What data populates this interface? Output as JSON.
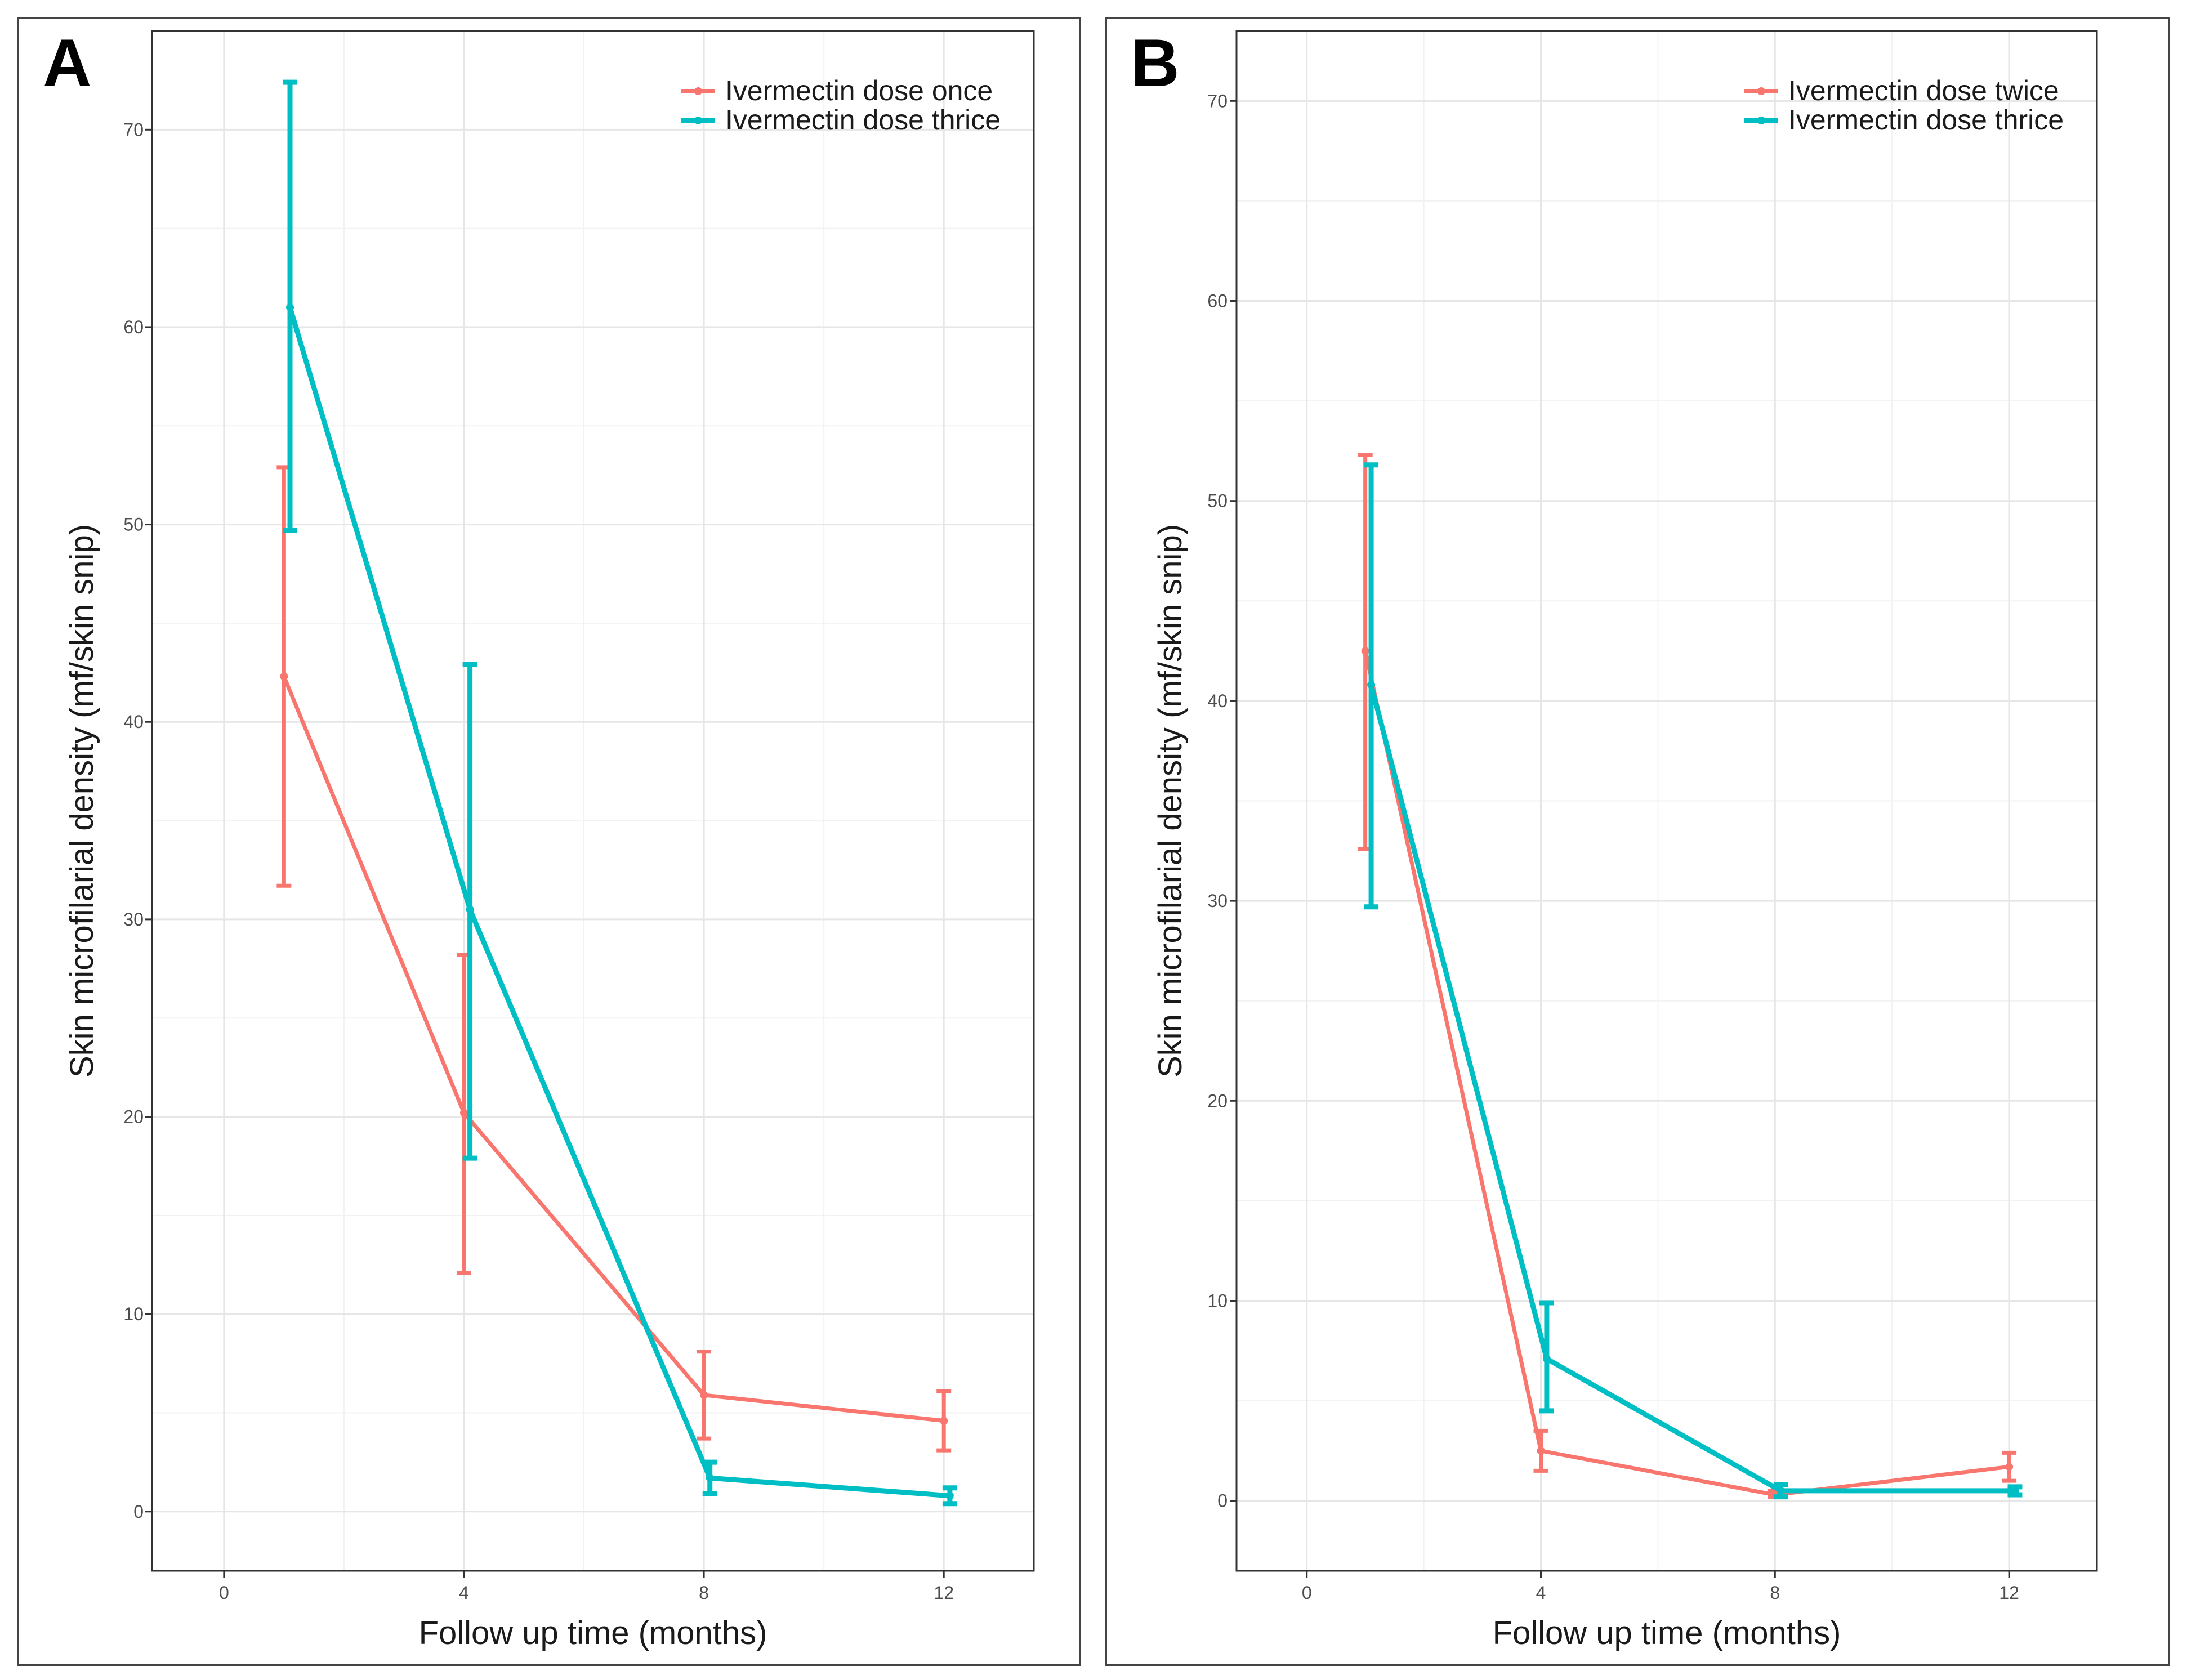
{
  "chart_data": [
    {
      "panel_label": "A",
      "type": "line",
      "xlabel": "Follow up time (months)",
      "ylabel": "Skin microfilarial density (mf/skin snip)",
      "xlim": [
        -1.2,
        13.5
      ],
      "ylim": [
        -3,
        75
      ],
      "xticks": [
        0,
        4,
        8,
        12
      ],
      "yticks": [
        0,
        10,
        20,
        30,
        40,
        50,
        60,
        70
      ],
      "x_minor_grid": [
        2,
        6,
        10
      ],
      "y_minor_grid": [
        5,
        15,
        25,
        35,
        45,
        55,
        65
      ],
      "grid": true,
      "legend_position": "top-right",
      "series": [
        {
          "name": "Ivermectin dose once",
          "color": "#F8766D",
          "x": [
            1,
            4,
            8,
            12
          ],
          "y": [
            42.3,
            20.2,
            5.9,
            4.6
          ],
          "lower": [
            31.7,
            12.1,
            3.7,
            3.1
          ],
          "upper": [
            52.9,
            28.2,
            8.1,
            6.1
          ]
        },
        {
          "name": "Ivermectin dose thrice",
          "color": "#00BFC4",
          "x": [
            1.1,
            4.1,
            8.1,
            12.1
          ],
          "y": [
            61.0,
            30.5,
            1.7,
            0.8
          ],
          "lower": [
            49.7,
            17.9,
            0.9,
            0.4
          ],
          "upper": [
            72.4,
            42.9,
            2.5,
            1.2
          ]
        }
      ]
    },
    {
      "panel_label": "B",
      "type": "line",
      "xlabel": "Follow up time (months)",
      "ylabel": "Skin microfilarial density (mf/skin snip)",
      "xlim": [
        -1.2,
        13.5
      ],
      "ylim": [
        -3.5,
        73.5
      ],
      "xticks": [
        0,
        4,
        8,
        12
      ],
      "yticks": [
        0,
        10,
        20,
        30,
        40,
        50,
        60,
        70
      ],
      "x_minor_grid": [
        2,
        6,
        10
      ],
      "y_minor_grid": [
        5,
        15,
        25,
        35,
        45,
        55,
        65
      ],
      "grid": true,
      "legend_position": "top-right",
      "series": [
        {
          "name": "Ivermectin dose twice",
          "color": "#F8766D",
          "x": [
            1,
            4,
            8,
            12
          ],
          "y": [
            42.5,
            2.5,
            0.3,
            1.7
          ],
          "lower": [
            32.6,
            1.5,
            0.2,
            1.0
          ],
          "upper": [
            52.3,
            3.5,
            0.5,
            2.4
          ]
        },
        {
          "name": "Ivermectin dose thrice",
          "color": "#00BFC4",
          "x": [
            1.1,
            4.1,
            8.1,
            12.1
          ],
          "y": [
            40.8,
            7.1,
            0.5,
            0.5
          ],
          "lower": [
            29.7,
            4.5,
            0.2,
            0.3
          ],
          "upper": [
            51.8,
            9.9,
            0.8,
            0.7
          ]
        }
      ]
    }
  ]
}
